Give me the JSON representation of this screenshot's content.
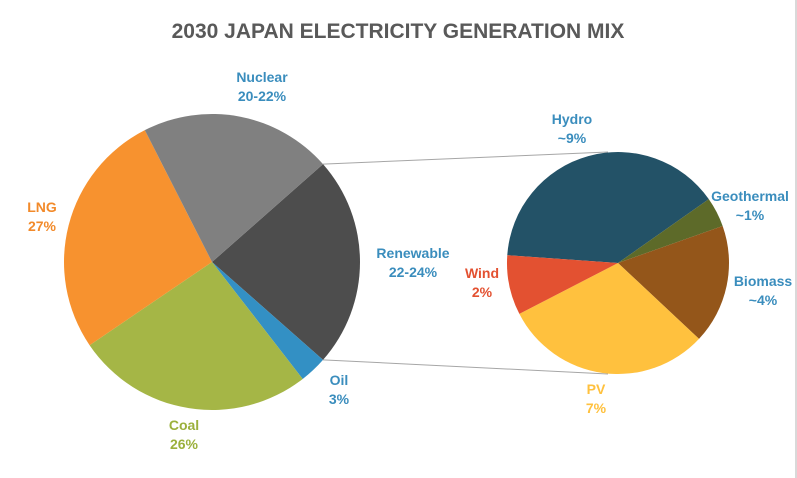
{
  "chart_data": {
    "type": "pie",
    "title": "2030 JAPAN ELECTRICITY GENERATION MIX",
    "main": {
      "slices": [
        {
          "name": "Renewable",
          "value": 23,
          "label": "22-24%",
          "color": "#4d4d4d",
          "label_color": "#3a8dbd"
        },
        {
          "name": "Oil",
          "value": 3,
          "label": "3%",
          "color": "#3390c4",
          "label_color": "#3a8dbd"
        },
        {
          "name": "Coal",
          "value": 26,
          "label": "26%",
          "color": "#a5b646",
          "label_color": "#9bb03c"
        },
        {
          "name": "LNG",
          "value": 27,
          "label": "27%",
          "color": "#f7922f",
          "label_color": "#f28a2a"
        },
        {
          "name": "Nuclear",
          "value": 21,
          "label": "20-22%",
          "color": "#808080",
          "label_color": "#3a8dbd"
        }
      ]
    },
    "secondary": {
      "parent": "Renewable",
      "slices": [
        {
          "name": "Hydro",
          "value": 9,
          "label": "~9%",
          "color": "#235267",
          "label_color": "#3a8dbd"
        },
        {
          "name": "Geothermal",
          "value": 1,
          "label": "~1%",
          "color": "#5d6a29",
          "label_color": "#3a8dbd"
        },
        {
          "name": "Biomass",
          "value": 4,
          "label": "~4%",
          "color": "#94561a",
          "label_color": "#3a8dbd"
        },
        {
          "name": "PV",
          "value": 7,
          "label": "7%",
          "color": "#ffc13e",
          "label_color": "#ffc13e"
        },
        {
          "name": "Wind",
          "value": 2,
          "label": "2%",
          "color": "#e35131",
          "label_color": "#e35131"
        }
      ]
    }
  }
}
